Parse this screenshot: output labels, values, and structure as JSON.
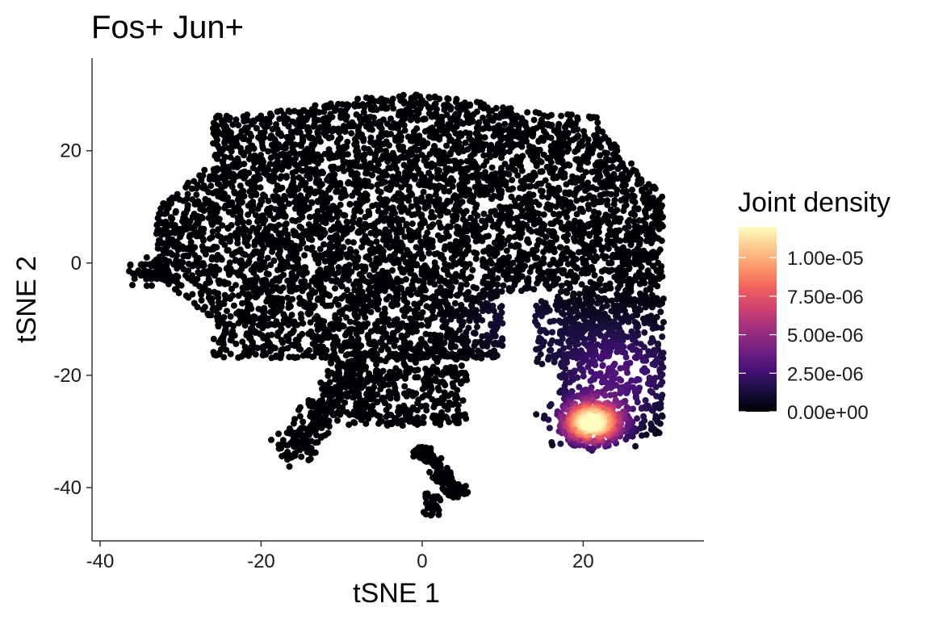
{
  "chart_data": {
    "type": "scatter",
    "title": "Fos+ Jun+",
    "xlabel": "tSNE 1",
    "ylabel": "tSNE 2",
    "xlim": [
      -41,
      35
    ],
    "ylim": [
      -49.5,
      36.5
    ],
    "x_ticks": [
      -40,
      -20,
      0,
      20
    ],
    "x_tick_labels": [
      "-40",
      "-20",
      "0",
      "20"
    ],
    "y_ticks": [
      -40,
      -20,
      0,
      20
    ],
    "y_tick_labels": [
      "-40",
      "-20",
      "0",
      "20"
    ],
    "grid": false,
    "legend": {
      "title": "Joint density",
      "placement": "right",
      "min": 0,
      "max": 1.2e-05,
      "breaks": [
        0,
        2.5e-06,
        5e-06,
        7.5e-06,
        1e-05
      ],
      "labels": [
        "0.00e+00",
        "2.50e-06",
        "5.00e-06",
        "7.50e-06",
        "1.00e-05"
      ],
      "colormap": [
        "#000004",
        "#180F3E",
        "#451077",
        "#721F81",
        "#9F2F7F",
        "#CD4071",
        "#F1605D",
        "#FD9567",
        "#FEC98D",
        "#FCFDBF"
      ]
    },
    "clusters": [
      {
        "name": "main_body",
        "x_range": [
          -33,
          30
        ],
        "y_range": [
          -17,
          31
        ],
        "density": 0
      },
      {
        "name": "left_protrusion",
        "x_range": [
          -38,
          -32
        ],
        "y_range": [
          -3,
          3
        ],
        "density": 0
      },
      {
        "name": "lower_left_tail",
        "x_range": [
          -17,
          -8
        ],
        "y_range": [
          -35,
          -16
        ],
        "density": 0
      },
      {
        "name": "lower_middle",
        "x_range": [
          -10,
          6
        ],
        "y_range": [
          -29,
          -16
        ],
        "density": 0
      },
      {
        "name": "bottom_island",
        "x_range": [
          -1,
          6
        ],
        "y_range": [
          -45,
          -33
        ],
        "density": 0
      },
      {
        "name": "dense_hotspot",
        "x_center": 21,
        "y_center": -28.5,
        "spread": 2.5,
        "peak_density": 1.2e-05
      },
      {
        "name": "density_halo",
        "x_range": [
          14,
          30
        ],
        "y_range": [
          -31,
          -5
        ],
        "density": 3e-06
      }
    ]
  }
}
